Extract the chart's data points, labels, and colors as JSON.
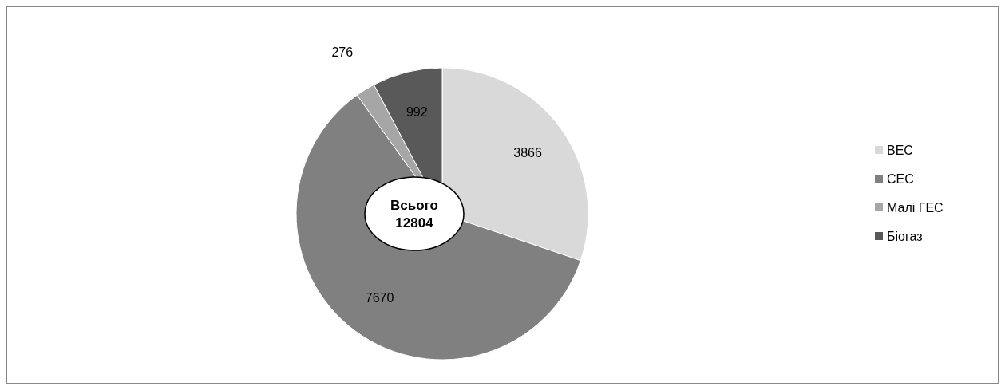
{
  "chart_data": {
    "type": "pie",
    "categories": [
      "ВЕС",
      "СЕС",
      "Малі ГЕС",
      "Біогаз"
    ],
    "values": [
      3866,
      7670,
      276,
      992
    ],
    "colors": [
      "#d9d9d9",
      "#808080",
      "#a6a6a6",
      "#595959"
    ],
    "data_labels": true,
    "legend": "right",
    "annotations": [
      "Всього 12804"
    ]
  }
}
